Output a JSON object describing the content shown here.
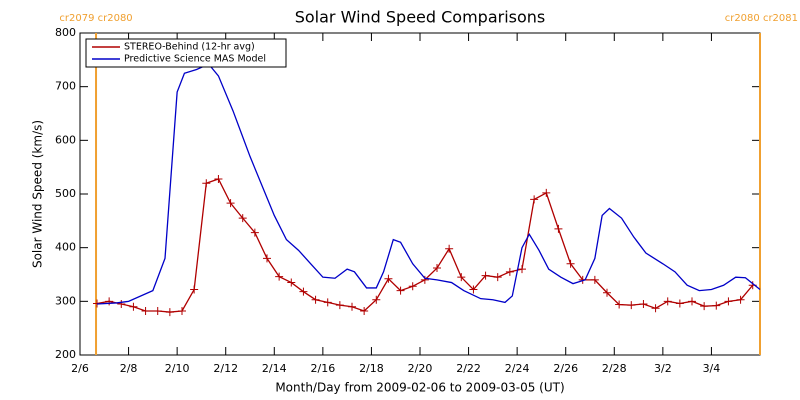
{
  "chart_data": {
    "type": "line",
    "title": "Solar Wind Speed Comparisons",
    "x_label": "Month/Day from 2009-02-06 to 2009-03-05 (UT)",
    "y_label": "Solar Wind Speed (km/s)",
    "xlim": [
      0,
      28
    ],
    "ylim": [
      200,
      800
    ],
    "xticks": [
      {
        "value": 0,
        "label": "2/6"
      },
      {
        "value": 2,
        "label": "2/8"
      },
      {
        "value": 4,
        "label": "2/10"
      },
      {
        "value": 6,
        "label": "2/12"
      },
      {
        "value": 8,
        "label": "2/14"
      },
      {
        "value": 10,
        "label": "2/16"
      },
      {
        "value": 12,
        "label": "2/18"
      },
      {
        "value": 14,
        "label": "2/20"
      },
      {
        "value": 16,
        "label": "2/22"
      },
      {
        "value": 18,
        "label": "2/24"
      },
      {
        "value": 20,
        "label": "2/26"
      },
      {
        "value": 22,
        "label": "2/28"
      },
      {
        "value": 24,
        "label": "3/2"
      },
      {
        "value": 26,
        "label": "3/4"
      }
    ],
    "yticks": [
      200,
      300,
      400,
      500,
      600,
      700,
      800
    ],
    "legend": "upper left",
    "annotations": [
      {
        "x": 0.66,
        "label": "cr2079 cr2080",
        "color": "#f0a030"
      },
      {
        "x": 28,
        "label": "cr2080 cr2081",
        "color": "#f0a030"
      }
    ],
    "series": [
      {
        "name": "STEREO-Behind (12-hr avg)",
        "color": "#b00000",
        "marker": "+",
        "x": [
          0.7,
          1.2,
          1.7,
          2.2,
          2.7,
          3.2,
          3.7,
          4.2,
          4.7,
          5.2,
          5.7,
          6.2,
          6.7,
          7.2,
          7.7,
          8.2,
          8.7,
          9.2,
          9.7,
          10.2,
          10.7,
          11.2,
          11.7,
          12.2,
          12.7,
          13.2,
          13.7,
          14.2,
          14.7,
          15.2,
          15.7,
          16.2,
          16.7,
          17.2,
          17.7,
          18.2,
          18.7,
          19.2,
          19.7,
          20.2,
          20.7,
          21.2,
          21.7,
          22.2,
          22.7,
          23.2,
          23.7,
          24.2,
          24.7,
          25.2,
          25.7,
          26.2,
          26.7,
          27.2,
          27.7
        ],
        "values": [
          296,
          300,
          295,
          290,
          282,
          282,
          280,
          282,
          322,
          520,
          528,
          483,
          455,
          428,
          380,
          346,
          335,
          318,
          303,
          298,
          293,
          290,
          282,
          303,
          342,
          320,
          328,
          340,
          362,
          398,
          345,
          322,
          348,
          345,
          355,
          360,
          490,
          502,
          435,
          370,
          340,
          340,
          316,
          294,
          293,
          295,
          287,
          300,
          296,
          300,
          291,
          292,
          300,
          303,
          330
        ]
      },
      {
        "name": "Predictive Science MAS Model",
        "color": "#0000c8",
        "x": [
          0.7,
          1.5,
          2,
          3,
          3.5,
          4,
          4.3,
          4.8,
          5.3,
          5.7,
          6.3,
          7,
          8,
          8.5,
          9,
          9.5,
          10,
          10.5,
          11,
          11.3,
          11.8,
          12.2,
          12.5,
          12.9,
          13.2,
          13.7,
          14.2,
          14.7,
          15.3,
          15.8,
          16.5,
          17,
          17.5,
          17.8,
          18.2,
          18.5,
          18.9,
          19.3,
          19.8,
          20.3,
          20.8,
          21.2,
          21.5,
          21.8,
          22.3,
          22.8,
          23.3,
          24,
          24.5,
          25,
          25.5,
          26,
          26.5,
          27,
          27.4,
          28
        ],
        "values": [
          295,
          297,
          300,
          320,
          380,
          690,
          725,
          732,
          742,
          720,
          655,
          570,
          460,
          415,
          395,
          370,
          345,
          343,
          360,
          355,
          325,
          325,
          355,
          415,
          410,
          370,
          343,
          340,
          335,
          320,
          305,
          303,
          298,
          310,
          400,
          425,
          395,
          360,
          345,
          333,
          340,
          380,
          460,
          473,
          455,
          420,
          390,
          370,
          355,
          330,
          320,
          322,
          330,
          345,
          344,
          322
        ]
      }
    ]
  }
}
